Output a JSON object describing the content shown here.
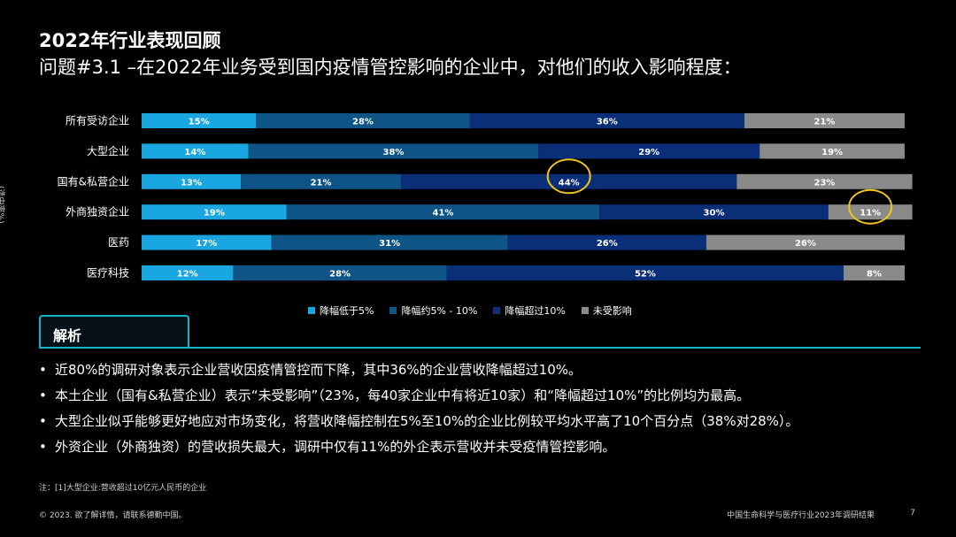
{
  "header": {
    "title": "2022年行业表现回顾",
    "subtitle": "问题#3.1 –在2022年业务受到国内疫情管控影响的企业中，对他们的收入影响程度："
  },
  "yaxis_note": "(选中率%)",
  "chart_data": {
    "type": "bar",
    "orientation": "horizontal",
    "stacked": true,
    "categories": [
      "所有受访企业",
      "大型企业",
      "国有&私营企业",
      "外商独资企业",
      "医药",
      "医疗科技"
    ],
    "series": [
      {
        "name": "降幅低于5%",
        "color": "#1aa6e0",
        "values": [
          15,
          14,
          13,
          19,
          17,
          12
        ]
      },
      {
        "name": "降幅约5% - 10%",
        "color": "#0e5486",
        "values": [
          28,
          38,
          21,
          41,
          31,
          28
        ]
      },
      {
        "name": "降幅超过10%",
        "color": "#0b2e78",
        "values": [
          36,
          29,
          44,
          30,
          26,
          52
        ]
      },
      {
        "name": "未受影响",
        "color": "#8a8a8a",
        "values": [
          21,
          19,
          23,
          11,
          26,
          8
        ]
      }
    ],
    "data_label_suffix": "%",
    "xlim": [
      0,
      100
    ],
    "legend_position": "bottom",
    "highlight_circle_color": "#f0c419",
    "highlights": [
      {
        "category": "国有&私营企业",
        "series": "降幅超过10%"
      },
      {
        "category": "外商独资企业",
        "series": "未受影响"
      }
    ]
  },
  "analysis": {
    "tab_label": "解析",
    "bullets": [
      "近80%的调研对象表示企业营收因疫情管控而下降，其中36%的企业营收降幅超过10%。",
      "本土企业（国有&私营企业）表示“未受影响”（23%，每40家企业中有将近10家）和“降幅超过10%”的比例均为最高。",
      "大型企业似乎能够更好地应对市场变化，将营收降幅控制在5%至10%的企业比例较平均水平高了10个百分点（38%对28%）。",
      "外资企业（外商独资）的营收损失最大，调研中仅有11%的外企表示营收并未受疫情管控影响。"
    ]
  },
  "note": "注：[1]大型企业:营收超过10亿元人民币的企业",
  "footer": {
    "left": "© 2023. 欲了解详情，请联系德勤中国。",
    "right": "中国生命科学与医疗行业2023年调研结果",
    "page": "7"
  }
}
